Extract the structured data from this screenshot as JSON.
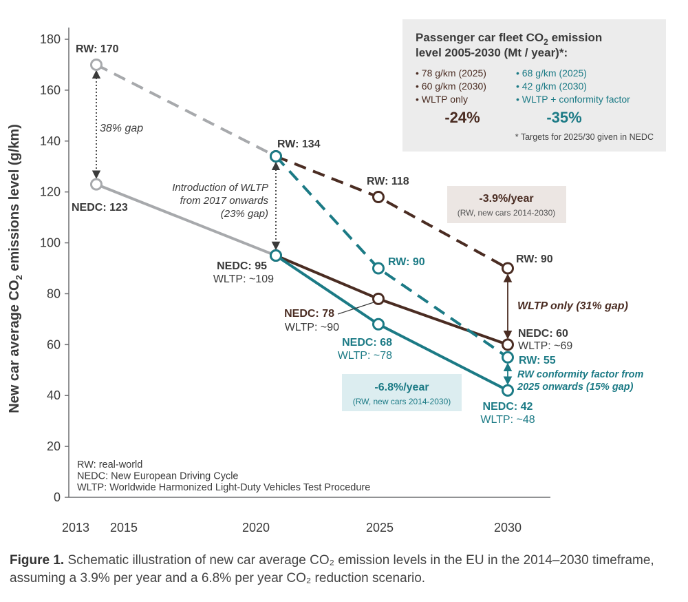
{
  "chart_data": {
    "type": "line",
    "ylabel": "New car average CO₂ emissions level (g/km)",
    "ylim": [
      0,
      180
    ],
    "yticks": [
      0,
      20,
      40,
      60,
      80,
      100,
      120,
      140,
      160,
      180
    ],
    "xticks": [
      "2013",
      "2015",
      "2020",
      "2025",
      "2030"
    ],
    "grid": false,
    "series": [
      {
        "style": "grey-dashed",
        "points": [
          {
            "x": 2014,
            "y": 170
          },
          {
            "x": 2021,
            "y": 134
          }
        ]
      },
      {
        "style": "grey-solid",
        "points": [
          {
            "x": 2014,
            "y": 123
          },
          {
            "x": 2021,
            "y": 95
          }
        ]
      },
      {
        "style": "brown-dashed",
        "points": [
          {
            "x": 2021,
            "y": 134
          },
          {
            "x": 2025,
            "y": 118
          },
          {
            "x": 2030,
            "y": 90
          }
        ]
      },
      {
        "style": "brown-solid",
        "points": [
          {
            "x": 2021,
            "y": 95
          },
          {
            "x": 2025,
            "y": 78
          },
          {
            "x": 2030,
            "y": 60
          }
        ]
      },
      {
        "style": "teal-dashed",
        "points": [
          {
            "x": 2021,
            "y": 134
          },
          {
            "x": 2025,
            "y": 90
          },
          {
            "x": 2030,
            "y": 55
          }
        ]
      },
      {
        "style": "teal-solid",
        "points": [
          {
            "x": 2021,
            "y": 95
          },
          {
            "x": 2025,
            "y": 68
          },
          {
            "x": 2030,
            "y": 42
          }
        ]
      }
    ],
    "gaps": [
      {
        "x": 2014,
        "from": 123,
        "to": 170,
        "label": "38% gap"
      },
      {
        "x": 2021,
        "from": 95,
        "to": 134,
        "label": "Introduction of WLTP\nfrom 2017 onwards\n(23% gap)"
      },
      {
        "x": 2030,
        "from": 60,
        "to": 90,
        "label": "WLTP only (31% gap)"
      },
      {
        "x": 2030,
        "from": 42,
        "to": 55,
        "label": "RW conformity factor from\n2025 onwards (15% gap)"
      }
    ],
    "point_labels": [
      {
        "text": "RW: 170"
      },
      {
        "text": "NEDC: 123"
      },
      {
        "text": "RW: 134"
      },
      {
        "text": "NEDC: 95"
      },
      {
        "text": "WLTP: ~109"
      },
      {
        "text": "RW: 118"
      },
      {
        "text": "RW: 90"
      },
      {
        "text": "NEDC: 78"
      },
      {
        "text": "WLTP: ~90"
      },
      {
        "text": "NEDC: 68"
      },
      {
        "text": "WLTP: ~78"
      },
      {
        "text": "RW: 90"
      },
      {
        "text": "NEDC: 60"
      },
      {
        "text": "WLTP: ~69"
      },
      {
        "text": "RW: 55"
      },
      {
        "text": "NEDC: 42"
      },
      {
        "text": "WLTP: ~48"
      }
    ],
    "rate_boxes": [
      {
        "rate": "-3.9%/year",
        "note": "(RW, new cars 2014-2030)"
      },
      {
        "rate": "-6.8%/year",
        "note": "(RW, new cars 2014-2030)"
      }
    ],
    "fleet_box": {
      "title_line1": "Passenger car fleet CO₂ emission",
      "title_line2": "level 2005-2030 (Mt / year)*:",
      "left_items": [
        "• 78 g/km (2025)",
        "• 60 g/km (2030)",
        "• WLTP only"
      ],
      "left_value": "-24%",
      "right_items": [
        "• 68 g/km (2025)",
        "• 42 g/km (2030)",
        "• WLTP + conformity factor"
      ],
      "right_value": "-35%",
      "footnote": "* Targets for 2025/30 given in NEDC"
    },
    "legend_notes": [
      "RW: real-world",
      "NEDC: New European Driving Cycle",
      "WLTP: Worldwide Harmonized Light-Duty Vehicles Test Procedure"
    ]
  },
  "caption": {
    "label": "Figure 1.",
    "text": " Schematic illustration of new car average CO₂ emission levels in the EU in the 2014–2030 timeframe, assuming a 3.9% per year and a 6.8% per year CO₂ reduction scenario."
  },
  "colors": {
    "grey": "#a7a9ac",
    "brown": "#4a2c22",
    "teal": "#1b7a85",
    "box_grey": "#ececec",
    "box_brown": "#ece6e3",
    "box_teal": "#dcedf0"
  }
}
